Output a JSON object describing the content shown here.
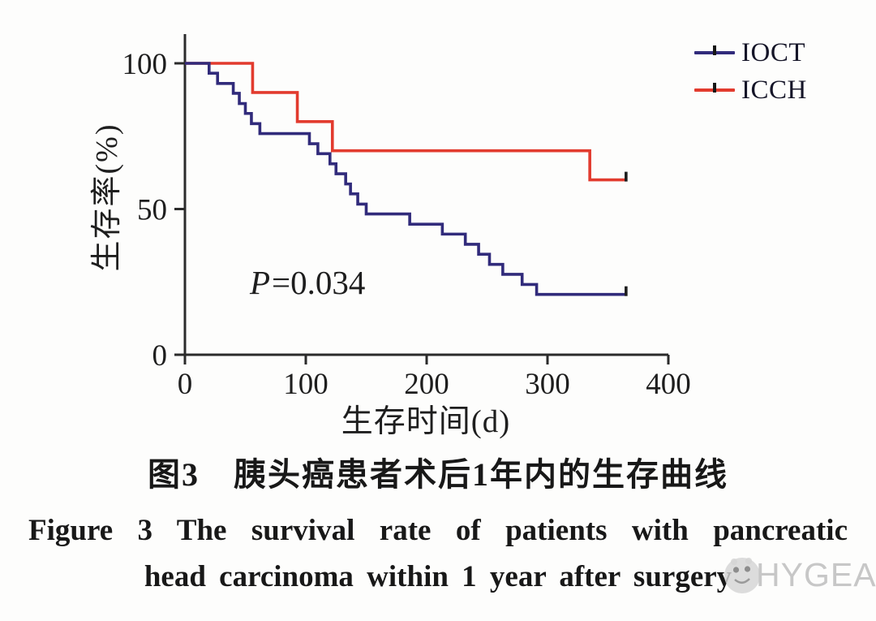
{
  "page": {
    "background": "#fdfdfc"
  },
  "chart_data": {
    "type": "line",
    "subtype": "kaplan-meier-step-survival",
    "title": "",
    "xlabel": "生存时间(d)",
    "ylabel": "生存率(%)",
    "xlim": [
      0,
      400
    ],
    "ylim": [
      0,
      100
    ],
    "x_ticks": [
      0,
      100,
      200,
      300,
      400
    ],
    "y_ticks": [
      0,
      50,
      100
    ],
    "grid": false,
    "legend_position": "top-right",
    "annotation": "P=0.034",
    "series": [
      {
        "name": "ICCH",
        "color": "#e23b2e",
        "steps": [
          [
            0,
            100
          ],
          [
            56,
            90
          ],
          [
            93,
            80
          ],
          [
            122,
            70
          ],
          [
            335,
            60
          ],
          [
            365,
            60
          ]
        ],
        "censor_at_day": 365
      },
      {
        "name": "IOCT",
        "color": "#312b7b",
        "steps": [
          [
            0,
            100
          ],
          [
            20,
            96.6
          ],
          [
            27,
            93.1
          ],
          [
            40,
            89.7
          ],
          [
            45,
            86.2
          ],
          [
            50,
            82.8
          ],
          [
            55,
            79.3
          ],
          [
            62,
            75.9
          ],
          [
            103,
            72.4
          ],
          [
            110,
            69.0
          ],
          [
            120,
            65.5
          ],
          [
            125,
            62.1
          ],
          [
            133,
            58.6
          ],
          [
            137,
            55.2
          ],
          [
            143,
            51.7
          ],
          [
            150,
            48.3
          ],
          [
            186,
            44.8
          ],
          [
            213,
            41.4
          ],
          [
            232,
            37.9
          ],
          [
            243,
            34.5
          ],
          [
            252,
            31.0
          ],
          [
            263,
            27.6
          ],
          [
            279,
            24.1
          ],
          [
            291,
            20.7
          ],
          [
            365,
            20.7
          ]
        ],
        "censor_at_day": 365
      }
    ]
  },
  "legend": {
    "items": [
      {
        "label": "IOCT",
        "color": "#312b7b"
      },
      {
        "label": "ICCH",
        "color": "#e23b2e"
      }
    ]
  },
  "pvalue": {
    "symbol": "P",
    "rest": "=0.034"
  },
  "axis": {
    "x_label": "生存时间(d)",
    "y_label": "生存率(%)"
  },
  "captions": {
    "zh": "图3　胰头癌患者术后1年内的生存曲线",
    "en_line1": "Figure 3 The survival rate of patients with pancreatic",
    "en_line2": "head carcinoma within 1 year after surgery"
  },
  "watermark": {
    "text": "HYGEA"
  }
}
